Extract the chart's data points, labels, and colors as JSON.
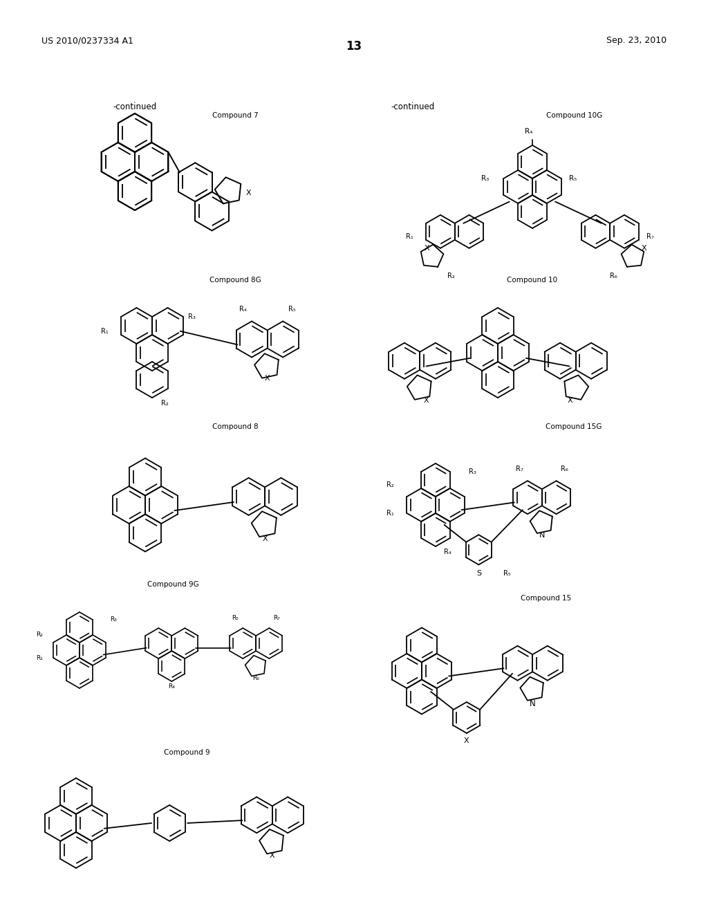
{
  "page_number": "13",
  "patent_number": "US 2010/0237334 A1",
  "patent_date": "Sep. 23, 2010",
  "background_color": "#ffffff",
  "figsize": [
    10.24,
    13.2
  ],
  "dpi": 100
}
